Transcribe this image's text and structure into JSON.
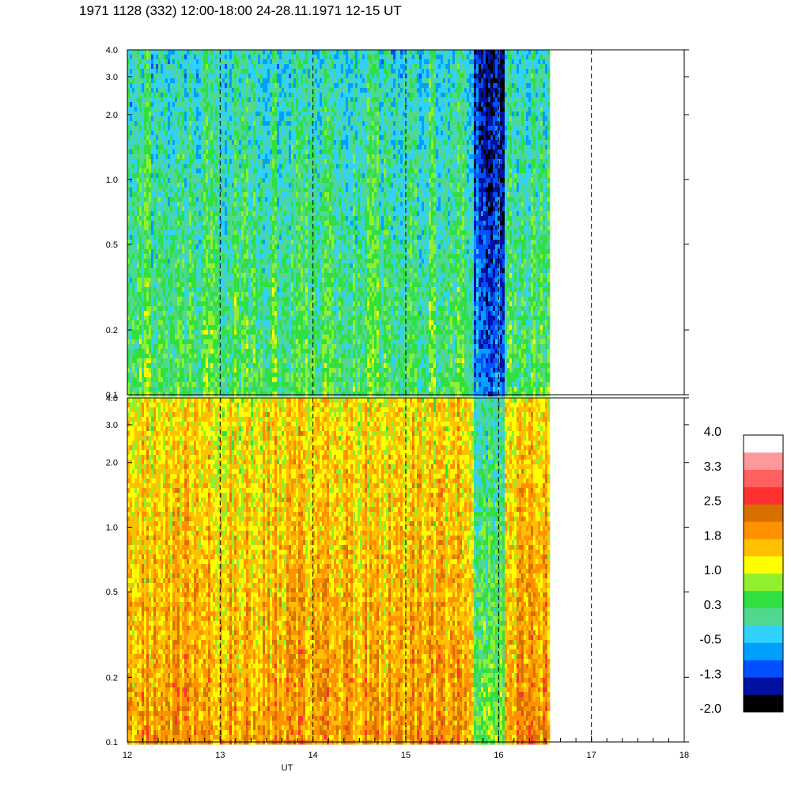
{
  "title": "1971 1128 (332) 12:00-18:00 24-28.11.1971  12-15 UT",
  "colors": {
    "scale": [
      "#000000",
      "#0010a0",
      "#0050ff",
      "#00a0ff",
      "#30d0ff",
      "#50d890",
      "#30e040",
      "#90f030",
      "#ffff00",
      "#ffc000",
      "#ff9000",
      "#d87000",
      "#ff3030",
      "#ff6060",
      "#ff9898",
      "#ffffff"
    ],
    "axis": "#000000",
    "background": "#ffffff"
  },
  "chart_data": [
    {
      "type": "heatmap",
      "title": "",
      "xlabel": "",
      "ylabel": "",
      "x_range": [
        12,
        18
      ],
      "y_range": [
        0.1,
        4.0
      ],
      "y_scale": "log",
      "y_ticks": [
        "0.1",
        "0.2",
        "0.5",
        "1.0",
        "2.0",
        "3.0",
        "4.0"
      ],
      "y_tick_values": [
        0.1,
        0.2,
        0.5,
        1.0,
        2.0,
        3.0,
        4.0
      ],
      "data_x_end": 16.53,
      "dashed_hours": [
        13,
        14,
        15,
        16,
        17
      ],
      "dominant_range": [
        -0.5,
        0.8
      ]
    },
    {
      "type": "heatmap",
      "title": "",
      "xlabel": "UT",
      "ylabel": "",
      "x_range": [
        12,
        18
      ],
      "x_ticks": [
        "12",
        "13",
        "14",
        "15",
        "16",
        "17",
        "18"
      ],
      "x_tick_values": [
        12,
        13,
        14,
        15,
        16,
        17,
        18
      ],
      "y_range": [
        0.1,
        4.0
      ],
      "y_scale": "log",
      "y_ticks": [
        "0.1",
        "0.2",
        "0.5",
        "1.0",
        "2.0",
        "3.0",
        "4.0"
      ],
      "y_tick_values": [
        0.1,
        0.2,
        0.5,
        1.0,
        2.0,
        3.0,
        4.0
      ],
      "data_x_end": 16.53,
      "dashed_hours": [
        13,
        14,
        15,
        16,
        17
      ],
      "dominant_range": [
        0.8,
        2.2
      ]
    }
  ],
  "colorbar": {
    "labels": [
      "4.0",
      "3.3",
      "2.5",
      "1.8",
      "1.0",
      "0.3",
      "-0.5",
      "-1.3",
      "-2.0"
    ],
    "range": [
      -2.0,
      4.0
    ]
  }
}
